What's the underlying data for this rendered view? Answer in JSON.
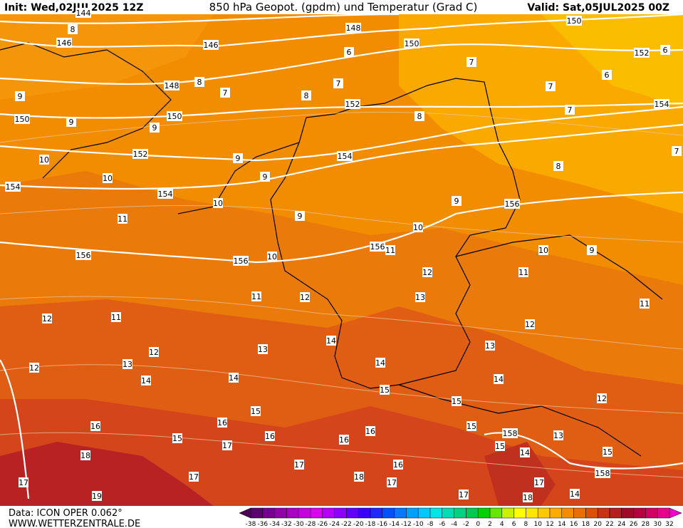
{
  "header": {
    "init": "Init: Wed,02JUL2025 12Z",
    "title": "850 hPa Geopot. (gpdm) und Temperatur (Grad C)",
    "valid": "Valid: Sat,05JUL2025 00Z"
  },
  "footer": {
    "source": "Data: ICON OPER 0.062°",
    "website": "WWW.WETTERZENTRALE.DE"
  },
  "contour_labels": {
    "geopotential": [
      144,
      146,
      146,
      148,
      148,
      150,
      150,
      150,
      150,
      152,
      152,
      152,
      154,
      154,
      154,
      154,
      156,
      156,
      156,
      156,
      158,
      158
    ],
    "temperature": [
      8,
      6,
      8,
      7,
      8,
      7,
      7,
      7,
      6,
      7,
      6,
      9,
      9,
      9,
      9,
      9,
      10,
      10,
      10,
      8,
      8,
      7,
      9,
      9,
      11,
      10,
      10,
      9,
      10,
      11,
      12,
      11,
      11,
      12,
      13,
      11,
      12,
      11,
      12,
      12,
      13,
      14,
      13,
      12,
      13,
      14,
      14,
      14,
      15,
      14,
      15,
      12,
      15,
      16,
      15,
      15,
      16,
      17,
      16,
      16,
      13,
      18,
      16,
      15,
      14,
      15,
      17,
      16,
      17,
      18,
      17,
      17,
      17,
      19,
      17,
      18,
      14
    ]
  },
  "colorbar": {
    "ticks": [
      -38,
      -36,
      -34,
      -32,
      -30,
      -28,
      -26,
      -24,
      -22,
      -20,
      -18,
      -16,
      -14,
      -12,
      -10,
      -8,
      -6,
      -4,
      -2,
      0,
      2,
      4,
      6,
      8,
      10,
      12,
      14,
      16,
      18,
      20,
      22,
      24,
      26,
      28,
      30,
      32
    ],
    "colors": [
      "#4b0055",
      "#5c0070",
      "#75008f",
      "#8f00aa",
      "#a800c4",
      "#c400de",
      "#dc00f0",
      "#b400ff",
      "#8c00ff",
      "#6400ff",
      "#3c00ff",
      "#1e28ff",
      "#0050ff",
      "#0078ff",
      "#00a0ff",
      "#00c8ff",
      "#00e6e6",
      "#00dcb4",
      "#00d282",
      "#00c850",
      "#00d200",
      "#64e600",
      "#c8f000",
      "#ffff00",
      "#ffe600",
      "#ffc800",
      "#ffaa00",
      "#f58c00",
      "#eb6e00",
      "#dc5000",
      "#c83214",
      "#b41e1e",
      "#a00a28",
      "#b4003c",
      "#d20064",
      "#e6008c",
      "#f000c8"
    ]
  }
}
